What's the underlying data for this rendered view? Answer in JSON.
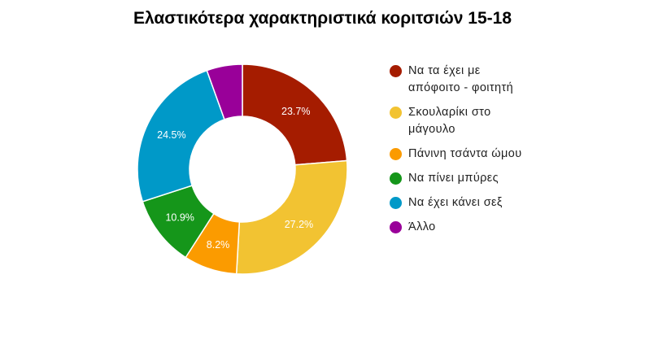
{
  "chart_data": {
    "type": "pie",
    "title": "Ελαστικότερα χαρακτηριστικά κοριτσιών 15-18",
    "donut": true,
    "legend_position": "right",
    "slices": [
      {
        "label": "Να τα έχει με απόφοιτο - φοιτητή",
        "value": 23.7,
        "value_label": "23.7%",
        "color": "#a51c00"
      },
      {
        "label": "Σκουλαρίκι στο μάγουλο",
        "value": 27.2,
        "value_label": "27.2%",
        "color": "#f2c332"
      },
      {
        "label": "Πάνινη τσάντα ώμου",
        "value": 8.2,
        "value_label": "8.2%",
        "color": "#fb9b00"
      },
      {
        "label": "Να πίνει μπύρες",
        "value": 10.9,
        "value_label": "10.9%",
        "color": "#15961a"
      },
      {
        "label": "Να έχει κάνει σεξ",
        "value": 24.5,
        "value_label": "24.5%",
        "color": "#0099c8"
      },
      {
        "label": "Άλλο",
        "value": 5.5,
        "value_label": "",
        "color": "#990099"
      }
    ]
  }
}
